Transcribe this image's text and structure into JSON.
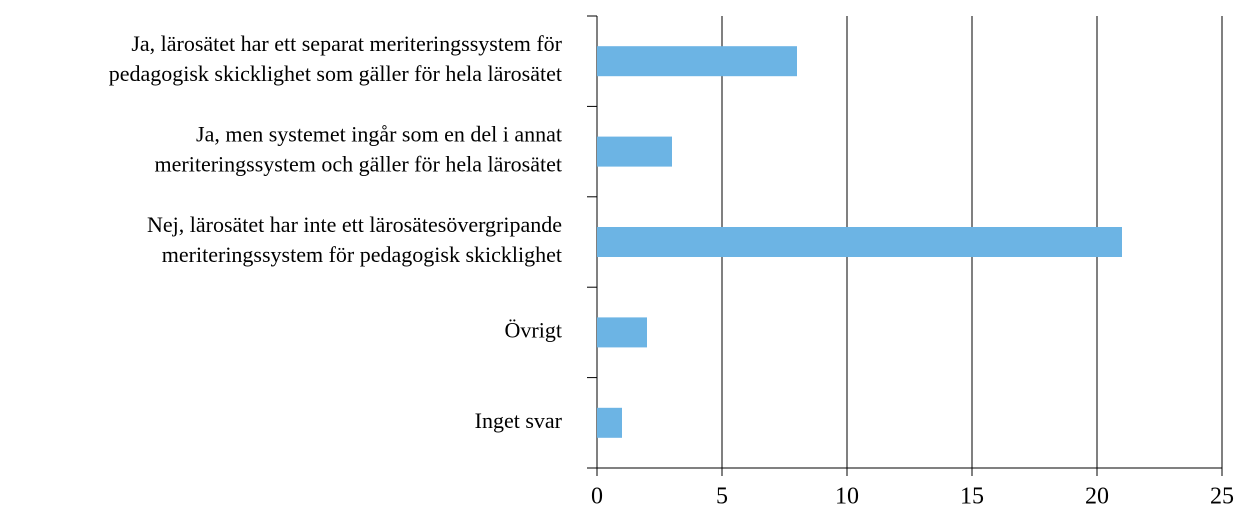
{
  "chart_data": {
    "type": "bar",
    "orientation": "horizontal",
    "categories": [
      [
        "Ja, lärosätet har ett separat meriteringssystem för",
        "pedagogisk skicklighet som gäller för hela lärosätet"
      ],
      [
        "Ja, men systemet ingår som en del i annat",
        "meriteringssystem och gäller för hela lärosätet"
      ],
      [
        "Nej, lärosätet har inte ett lärosätesövergripande",
        "meriteringssystem för pedagogisk skicklighet"
      ],
      [
        "Övrigt"
      ],
      [
        "Inget svar"
      ]
    ],
    "values": [
      8,
      3,
      21,
      2,
      1
    ],
    "color": "#6cb4e4",
    "xlim": [
      0,
      25
    ],
    "xticks": [
      0,
      5,
      10,
      15,
      20,
      25
    ],
    "grid": true
  }
}
